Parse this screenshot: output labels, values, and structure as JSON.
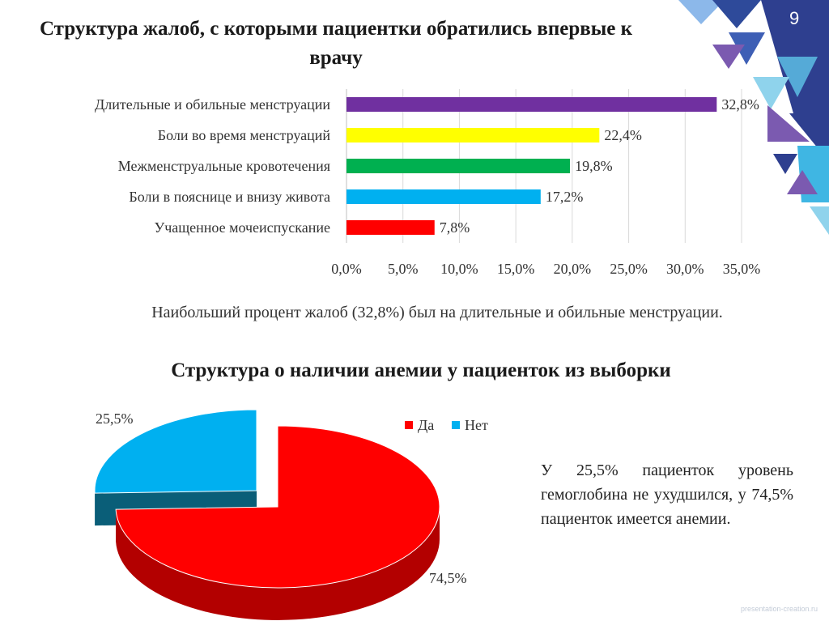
{
  "slide_number": "9",
  "watermark": "presentation-creation.ru",
  "note_top": "Наибольший процент жалоб (32,8%) был на длительные и обильные менструации.",
  "note_bottom": "У 25,5% пациенток уровень гемоглобина не ухудшился, у 74,5% пациенток имеется анемии.",
  "colors": {
    "purple": "#7030a0",
    "yellow": "#ffff00",
    "green": "#00b050",
    "blue": "#00b0f0",
    "red": "#ff0000",
    "deco_navy": "#2e3f8f",
    "deco_cyan": "#8fd3ec",
    "deco_purple": "#7b5ab0"
  },
  "chart_data": [
    {
      "type": "bar",
      "orientation": "horizontal",
      "title": "Структура жалоб, с которыми пациентки обратились впервые к врачу",
      "categories": [
        "Длительные и обильные менструации",
        "Боли во время менструаций",
        "Межменструальные кровотечения",
        "Боли в пояснице и внизу живота",
        "Учащенное мочеиспускание"
      ],
      "values": [
        32.8,
        22.4,
        19.8,
        17.2,
        7.8
      ],
      "value_labels": [
        "32,8%",
        "22,4%",
        "19,8%",
        "17,2%",
        "7,8%"
      ],
      "bar_colors": [
        "#7030a0",
        "#ffff00",
        "#00b050",
        "#00b0f0",
        "#ff0000"
      ],
      "xlim": [
        0,
        35
      ],
      "x_ticks": [
        0,
        5,
        10,
        15,
        20,
        25,
        30,
        35
      ],
      "x_tick_labels": [
        "0,0%",
        "5,0%",
        "10,0%",
        "15,0%",
        "20,0%",
        "25,0%",
        "30,0%",
        "35,0%"
      ],
      "grid": true
    },
    {
      "type": "pie",
      "style": "3d-exploded",
      "title": "Структура о наличии анемии у пациенток из выборки",
      "categories": [
        "Да",
        "Нет"
      ],
      "values": [
        74.5,
        25.5
      ],
      "value_labels": [
        "74,5%",
        "25,5%"
      ],
      "slice_colors": [
        "#ff0000",
        "#00b0f0"
      ],
      "legend": "top-right"
    }
  ]
}
